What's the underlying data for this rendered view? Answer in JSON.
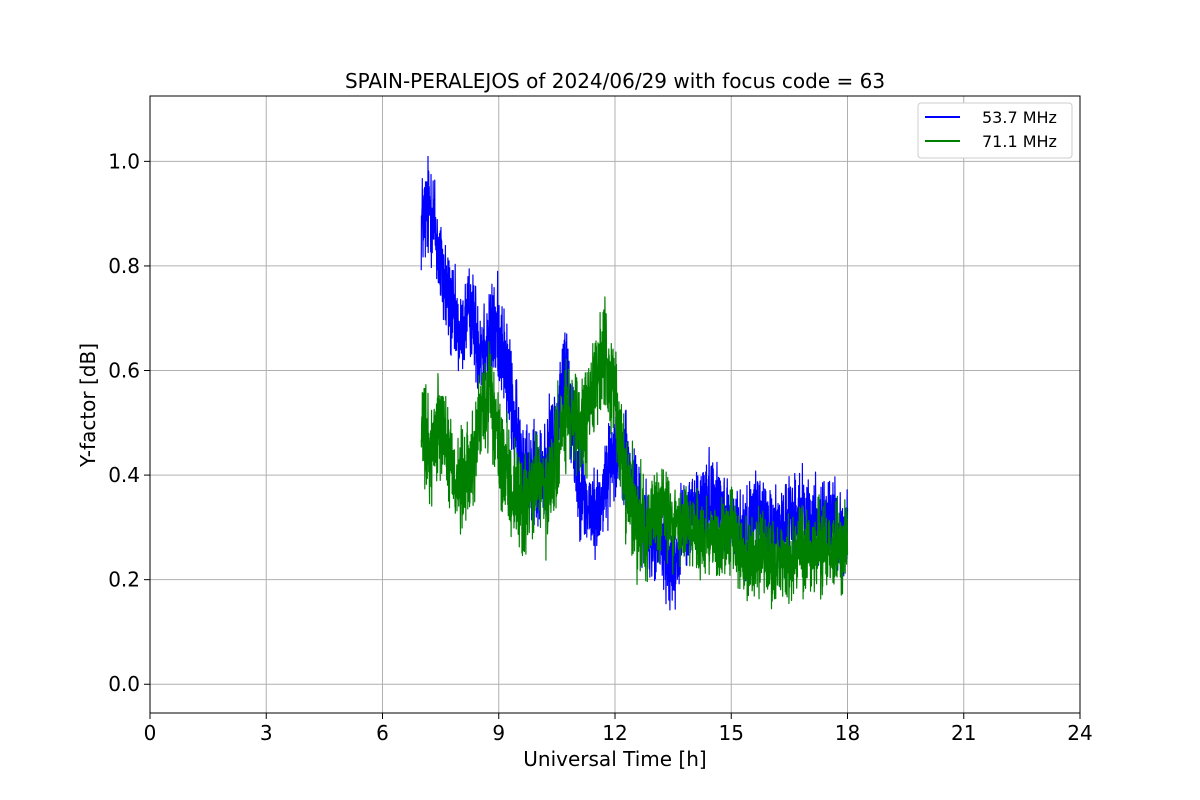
{
  "chart_data": {
    "type": "line",
    "title": "SPAIN-PERALEJOS of 2024/06/29 with focus code = 63",
    "xlabel": "Universal Time [h]",
    "ylabel": "Y-factor [dB]",
    "xlim": [
      0,
      24
    ],
    "ylim": [
      -0.055,
      1.125
    ],
    "xticks": [
      0,
      3,
      6,
      9,
      12,
      15,
      18,
      21,
      24
    ],
    "xtick_labels": [
      "0",
      "3",
      "6",
      "9",
      "12",
      "15",
      "18",
      "21",
      "24"
    ],
    "yticks": [
      0.0,
      0.2,
      0.4,
      0.6,
      0.8,
      1.0
    ],
    "ytick_labels": [
      "0.0",
      "0.2",
      "0.4",
      "0.6",
      "0.8",
      "1.0"
    ],
    "grid": true,
    "legend_position": "upper right",
    "series": [
      {
        "name": "53.7 MHz",
        "color": "#0000ff",
        "x": [
          7.0,
          7.25,
          7.5,
          7.75,
          8.0,
          8.25,
          8.5,
          8.75,
          9.0,
          9.25,
          9.5,
          9.75,
          10.0,
          10.25,
          10.5,
          10.75,
          11.0,
          11.25,
          11.5,
          11.75,
          12.0,
          12.25,
          12.5,
          12.75,
          13.0,
          13.25,
          13.5,
          13.75,
          14.0,
          14.25,
          14.5,
          14.75,
          15.0,
          15.25,
          15.5,
          15.75,
          16.0,
          16.25,
          16.5,
          16.75,
          17.0,
          17.25,
          17.5,
          17.75,
          18.0
        ],
        "y": [
          0.88,
          0.92,
          0.8,
          0.72,
          0.66,
          0.72,
          0.65,
          0.66,
          0.68,
          0.58,
          0.45,
          0.42,
          0.38,
          0.42,
          0.5,
          0.62,
          0.42,
          0.34,
          0.32,
          0.38,
          0.46,
          0.42,
          0.36,
          0.3,
          0.28,
          0.26,
          0.22,
          0.3,
          0.33,
          0.34,
          0.36,
          0.34,
          0.3,
          0.28,
          0.3,
          0.32,
          0.3,
          0.3,
          0.31,
          0.33,
          0.32,
          0.31,
          0.32,
          0.3,
          0.28
        ],
        "noise": [
          0.12,
          0.13,
          0.12,
          0.12,
          0.1,
          0.1,
          0.12,
          0.12,
          0.12,
          0.12,
          0.12,
          0.12,
          0.12,
          0.12,
          0.12,
          0.12,
          0.12,
          0.1,
          0.1,
          0.1,
          0.1,
          0.12,
          0.12,
          0.1,
          0.1,
          0.1,
          0.1,
          0.1,
          0.1,
          0.1,
          0.1,
          0.1,
          0.1,
          0.1,
          0.1,
          0.1,
          0.1,
          0.1,
          0.1,
          0.1,
          0.1,
          0.1,
          0.1,
          0.1,
          0.1
        ]
      },
      {
        "name": "71.1 MHz",
        "color": "#008000",
        "x": [
          7.0,
          7.25,
          7.5,
          7.75,
          8.0,
          8.25,
          8.5,
          8.75,
          9.0,
          9.25,
          9.5,
          9.75,
          10.0,
          10.25,
          10.5,
          10.75,
          11.0,
          11.25,
          11.5,
          11.75,
          12.0,
          12.25,
          12.5,
          12.75,
          13.0,
          13.25,
          13.5,
          13.75,
          14.0,
          14.25,
          14.5,
          14.75,
          15.0,
          15.25,
          15.5,
          15.75,
          16.0,
          16.25,
          16.5,
          16.75,
          17.0,
          17.25,
          17.5,
          17.75,
          18.0
        ],
        "y": [
          0.48,
          0.44,
          0.52,
          0.42,
          0.38,
          0.4,
          0.5,
          0.56,
          0.45,
          0.38,
          0.36,
          0.34,
          0.4,
          0.34,
          0.44,
          0.52,
          0.48,
          0.5,
          0.6,
          0.62,
          0.55,
          0.4,
          0.33,
          0.3,
          0.32,
          0.34,
          0.3,
          0.31,
          0.3,
          0.28,
          0.29,
          0.27,
          0.29,
          0.25,
          0.24,
          0.25,
          0.22,
          0.24,
          0.23,
          0.26,
          0.25,
          0.26,
          0.27,
          0.26,
          0.28
        ],
        "noise": [
          0.12,
          0.12,
          0.12,
          0.12,
          0.12,
          0.12,
          0.12,
          0.12,
          0.12,
          0.12,
          0.12,
          0.12,
          0.12,
          0.12,
          0.12,
          0.12,
          0.12,
          0.12,
          0.12,
          0.12,
          0.12,
          0.12,
          0.12,
          0.12,
          0.12,
          0.1,
          0.1,
          0.1,
          0.1,
          0.1,
          0.1,
          0.1,
          0.1,
          0.1,
          0.1,
          0.1,
          0.1,
          0.1,
          0.1,
          0.1,
          0.1,
          0.1,
          0.1,
          0.1,
          0.1
        ]
      }
    ]
  }
}
